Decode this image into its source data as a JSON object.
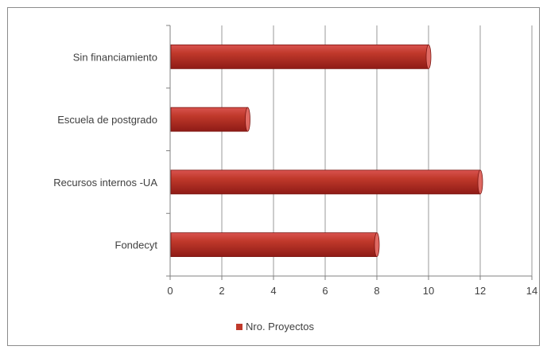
{
  "chart_data": {
    "type": "bar",
    "orientation": "horizontal",
    "categories": [
      "Sin financiamiento",
      "Escuela de postgrado",
      "Recursos internos -UA",
      "Fondecyt"
    ],
    "series": [
      {
        "name": "Nro. Proyectos",
        "values": [
          10,
          3,
          12,
          8
        ],
        "color": "#c0392b"
      }
    ],
    "xlim": [
      0,
      14
    ],
    "xticks": [
      0,
      2,
      4,
      6,
      8,
      10,
      12,
      14
    ],
    "grid": "vertical",
    "legend": "bottom-center",
    "title": "",
    "xlabel": "",
    "ylabel": ""
  }
}
